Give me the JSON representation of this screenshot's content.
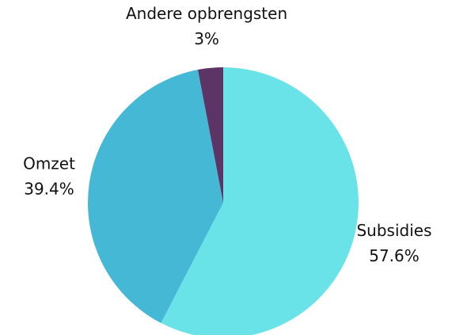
{
  "chart_data": {
    "type": "pie",
    "categories": [
      "Subsidies",
      "Omzet",
      "Andere opbrengsten"
    ],
    "values": [
      57.6,
      39.4,
      3
    ],
    "value_labels": [
      "57.6%",
      "39.4%",
      "3%"
    ],
    "colors": [
      "#6ae3e8",
      "#45b8d6",
      "#5c3566"
    ]
  }
}
